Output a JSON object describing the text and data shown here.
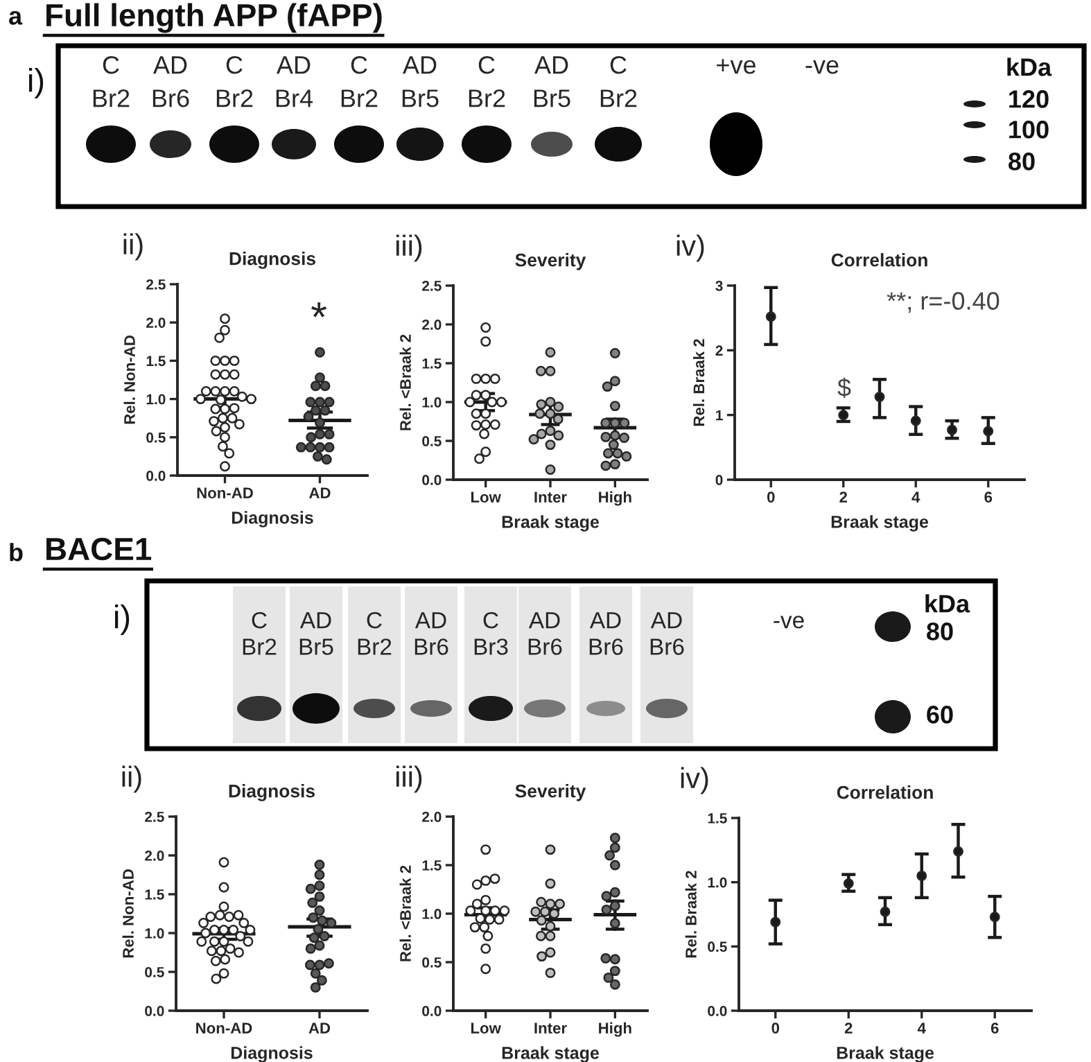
{
  "chart_data": [
    {
      "type": "other",
      "title": "Full length APP (fAPP)",
      "categories": [
        "C\nBr2",
        "AD\nBr6",
        "C\nBr2",
        "AD\nBr4",
        "C\nBr2",
        "AD\nBr5",
        "C\nBr2",
        "AD\nBr5",
        "C\nBr2",
        "+ve",
        "-ve"
      ],
      "annotations": [
        "a",
        "i)",
        "kDa",
        "120",
        "100",
        "80"
      ]
    },
    {
      "type": "scatter",
      "title": "Diagnosis",
      "xlabel": "Diagnosis",
      "ylabel": "Rel. Non-AD",
      "categories": [
        "Non-AD",
        "AD"
      ],
      "ylim": [
        0,
        2.5
      ],
      "yticks": [
        {
          "value": 0,
          "label": "0.0"
        },
        {
          "value": 0.5,
          "label": "0.5"
        },
        {
          "value": 1,
          "label": "1.0"
        },
        {
          "value": 1.5,
          "label": "1.5"
        },
        {
          "value": 2,
          "label": "2.0"
        },
        {
          "value": 2.5,
          "label": "2.5"
        }
      ],
      "series": [
        {
          "type": "scatter",
          "marker": "circle",
          "color": "#ffffff",
          "x": [
            "Non-AD",
            "Non-AD",
            "Non-AD",
            "Non-AD",
            "Non-AD",
            "Non-AD",
            "Non-AD",
            "Non-AD",
            "Non-AD",
            "Non-AD",
            "Non-AD",
            "Non-AD",
            "Non-AD",
            "Non-AD",
            "Non-AD",
            "Non-AD",
            "Non-AD",
            "Non-AD",
            "Non-AD",
            "Non-AD",
            "Non-AD",
            "Non-AD",
            "Non-AD",
            "Non-AD",
            "Non-AD",
            "Non-AD",
            "Non-AD",
            "Non-AD",
            "Non-AD",
            "Non-AD"
          ],
          "values": [
            2.05,
            1.9,
            1.8,
            1.5,
            1.5,
            1.5,
            1.32,
            1.32,
            1.32,
            1.1,
            1.1,
            1.1,
            1.1,
            1.03,
            1.0,
            1.0,
            0.99,
            0.87,
            0.87,
            0.88,
            0.75,
            0.75,
            0.71,
            0.67,
            0.63,
            0.58,
            0.5,
            0.38,
            0.29,
            0.12
          ]
        },
        {
          "type": "scatter",
          "marker": "circle",
          "color": "#4d4d4d",
          "x": [
            "AD",
            "AD",
            "AD",
            "AD",
            "AD",
            "AD",
            "AD",
            "AD",
            "AD",
            "AD",
            "AD",
            "AD",
            "AD",
            "AD",
            "AD",
            "AD",
            "AD",
            "AD",
            "AD",
            "AD"
          ],
          "values": [
            1.61,
            1.28,
            1.17,
            1.17,
            0.96,
            0.96,
            0.96,
            0.85,
            0.85,
            0.77,
            0.69,
            0.54,
            0.5,
            0.54,
            0.37,
            0.37,
            0.37,
            0.37,
            0.25,
            0.21
          ]
        },
        {
          "type": "box",
          "color": "#1a1a1a",
          "boxes": [
            {
              "low": 0.89,
              "q1": 1.0,
              "median": 1.0,
              "q3": 1.0,
              "high": 1.1
            },
            {
              "low": 0.62,
              "q1": 0.72,
              "median": 0.72,
              "q3": 0.72,
              "high": 0.83
            }
          ]
        }
      ],
      "annotations": [
        "ii)",
        "*"
      ]
    },
    {
      "type": "scatter",
      "title": "Severity",
      "xlabel": "Braak stage",
      "ylabel": "Rel. <Braak 2",
      "categories": [
        "Low",
        "Inter",
        "High"
      ],
      "ylim": [
        0,
        2.5
      ],
      "yticks": [
        {
          "value": 0,
          "label": "0.0"
        },
        {
          "value": 0.5,
          "label": "0.5"
        },
        {
          "value": 1,
          "label": "1.0"
        },
        {
          "value": 1.5,
          "label": "1.5"
        },
        {
          "value": 2,
          "label": "2.0"
        },
        {
          "value": 2.5,
          "label": "2.5"
        }
      ],
      "series": [
        {
          "type": "scatter",
          "marker": "circle",
          "color": "#ffffff",
          "x": [
            "Low",
            "Low",
            "Low",
            "Low",
            "Low",
            "Low",
            "Low",
            "Low",
            "Low",
            "Low",
            "Low",
            "Low",
            "Low",
            "Low",
            "Low",
            "Low",
            "Low",
            "Low"
          ],
          "values": [
            1.96,
            1.78,
            1.3,
            1.3,
            1.3,
            1.09,
            1.09,
            1.0,
            1.0,
            1.0,
            0.85,
            0.85,
            0.71,
            0.7,
            0.71,
            0.59,
            0.36,
            0.27
          ]
        },
        {
          "type": "scatter",
          "marker": "circle",
          "color": "#a6a6a6",
          "x": [
            "Inter",
            "Inter",
            "Inter",
            "Inter",
            "Inter",
            "Inter",
            "Inter",
            "Inter",
            "Inter",
            "Inter",
            "Inter",
            "Inter",
            "Inter",
            "Inter",
            "Inter"
          ],
          "values": [
            1.64,
            1.4,
            1.4,
            1.0,
            0.97,
            0.94,
            0.85,
            0.85,
            0.78,
            0.63,
            0.59,
            0.57,
            0.52,
            0.45,
            0.13
          ]
        },
        {
          "type": "scatter",
          "marker": "circle",
          "color": "#7f7f7f",
          "x": [
            "High",
            "High",
            "High",
            "High",
            "High",
            "High",
            "High",
            "High",
            "High",
            "High",
            "High",
            "High",
            "High",
            "High",
            "High",
            "High"
          ],
          "values": [
            1.63,
            1.27,
            1.2,
            0.95,
            0.73,
            0.73,
            0.73,
            0.57,
            0.55,
            0.54,
            0.45,
            0.34,
            0.34,
            0.3,
            0.2,
            0.18
          ]
        },
        {
          "type": "box",
          "color": "#1a1a1a",
          "boxes": [
            {
              "low": 0.89,
              "q1": 1.0,
              "median": 1.0,
              "q3": 1.0,
              "high": 1.11
            },
            {
              "low": 0.71,
              "q1": 0.84,
              "median": 0.84,
              "q3": 0.84,
              "high": 0.97
            },
            {
              "low": 0.55,
              "q1": 0.67,
              "median": 0.67,
              "q3": 0.67,
              "high": 0.78
            }
          ]
        }
      ],
      "annotations": [
        "iii)"
      ]
    },
    {
      "type": "scatter",
      "title": "Correlation",
      "xlabel": "Braak stage",
      "ylabel": "Rel. Braak 2",
      "xlim": [
        -1,
        7
      ],
      "xticks": [
        0,
        2,
        4,
        6
      ],
      "ylim": [
        0,
        3
      ],
      "yticks": [
        0,
        1,
        2,
        3
      ],
      "series": [
        {
          "type": "scatter",
          "marker": "circle",
          "color": "#1a1a1a",
          "x": [
            0,
            2,
            3,
            4,
            5,
            6
          ],
          "values": [
            2.52,
            1.0,
            1.28,
            0.91,
            0.77,
            0.75
          ],
          "errors": [
            [
              2.09,
              2.97
            ],
            [
              0.9,
              1.11
            ],
            [
              0.96,
              1.55
            ],
            [
              0.7,
              1.13
            ],
            [
              0.64,
              0.91
            ],
            [
              0.56,
              0.96
            ]
          ]
        }
      ],
      "annotations": [
        "iv)",
        "**; r=-0.40",
        "$"
      ]
    },
    {
      "type": "other",
      "title": "BACE1",
      "categories": [
        "C\nBr2",
        "AD\nBr5",
        "C\nBr2",
        "AD\nBr6",
        "C\nBr3",
        "AD\nBr6",
        "AD\nBr6",
        "AD\nBr6",
        "-ve"
      ],
      "annotations": [
        "b",
        "i)",
        "kDa",
        "80",
        "60"
      ]
    },
    {
      "type": "scatter",
      "title": "Diagnosis",
      "xlabel": "Diagnosis",
      "ylabel": "Rel. Non-AD",
      "categories": [
        "Non-AD",
        "AD"
      ],
      "ylim": [
        0,
        2.5
      ],
      "yticks": [
        {
          "value": 0,
          "label": "0.0"
        },
        {
          "value": 0.5,
          "label": "0.5"
        },
        {
          "value": 1,
          "label": "1.0"
        },
        {
          "value": 1.5,
          "label": "1.5"
        },
        {
          "value": 2,
          "label": "2.0"
        },
        {
          "value": 2.5,
          "label": "2.5"
        }
      ],
      "series": [
        {
          "type": "scatter",
          "marker": "circle",
          "color": "#ffffff",
          "x": [
            "Non-AD",
            "Non-AD",
            "Non-AD",
            "Non-AD",
            "Non-AD",
            "Non-AD",
            "Non-AD",
            "Non-AD",
            "Non-AD",
            "Non-AD",
            "Non-AD",
            "Non-AD",
            "Non-AD",
            "Non-AD",
            "Non-AD",
            "Non-AD",
            "Non-AD",
            "Non-AD",
            "Non-AD",
            "Non-AD",
            "Non-AD",
            "Non-AD",
            "Non-AD",
            "Non-AD",
            "Non-AD",
            "Non-AD",
            "Non-AD"
          ],
          "values": [
            1.91,
            1.59,
            1.34,
            1.23,
            1.21,
            1.21,
            1.23,
            1.13,
            1.13,
            1.04,
            1.04,
            1.04,
            1.04,
            1.0,
            0.96,
            0.89,
            0.89,
            0.89,
            0.89,
            0.8,
            0.77,
            0.77,
            0.75,
            0.66,
            0.64,
            0.48,
            0.41
          ]
        },
        {
          "type": "scatter",
          "marker": "circle",
          "color": "#595959",
          "x": [
            "AD",
            "AD",
            "AD",
            "AD",
            "AD",
            "AD",
            "AD",
            "AD",
            "AD",
            "AD",
            "AD",
            "AD",
            "AD",
            "AD",
            "AD",
            "AD",
            "AD",
            "AD",
            "AD",
            "AD",
            "AD"
          ],
          "values": [
            1.88,
            1.75,
            1.61,
            1.57,
            1.47,
            1.39,
            1.29,
            1.2,
            1.16,
            1.13,
            1.05,
            0.96,
            0.94,
            0.84,
            0.8,
            0.59,
            0.59,
            0.61,
            0.48,
            0.39,
            0.3
          ]
        },
        {
          "type": "box",
          "color": "#1a1a1a",
          "boxes": [
            {
              "low": 0.92,
              "q1": 0.99,
              "median": 0.99,
              "q3": 0.99,
              "high": 1.06
            },
            {
              "low": 0.96,
              "q1": 1.08,
              "median": 1.08,
              "q3": 1.08,
              "high": 1.18
            }
          ]
        }
      ],
      "annotations": [
        "ii)"
      ]
    },
    {
      "type": "scatter",
      "title": "Severity",
      "xlabel": "Braak stage",
      "ylabel": "Rel. <Braak 2",
      "categories": [
        "Low",
        "Inter",
        "High"
      ],
      "ylim": [
        0,
        2
      ],
      "yticks": [
        {
          "value": 0,
          "label": "0.0"
        },
        {
          "value": 0.5,
          "label": "0.5"
        },
        {
          "value": 1,
          "label": "1.0"
        },
        {
          "value": 1.5,
          "label": "1.5"
        },
        {
          "value": 2,
          "label": "2.0"
        }
      ],
      "series": [
        {
          "type": "scatter",
          "marker": "circle",
          "color": "#ffffff",
          "x": [
            "Low",
            "Low",
            "Low",
            "Low",
            "Low",
            "Low",
            "Low",
            "Low",
            "Low",
            "Low",
            "Low",
            "Low",
            "Low",
            "Low",
            "Low",
            "Low",
            "Low",
            "Low"
          ],
          "values": [
            1.66,
            1.34,
            1.3,
            1.36,
            1.14,
            1.1,
            1.03,
            1.03,
            1.03,
            1.03,
            0.95,
            0.94,
            0.94,
            0.86,
            0.86,
            0.77,
            0.64,
            0.43
          ]
        },
        {
          "type": "scatter",
          "marker": "circle",
          "color": "#bfbfbf",
          "x": [
            "Inter",
            "Inter",
            "Inter",
            "Inter",
            "Inter",
            "Inter",
            "Inter",
            "Inter",
            "Inter",
            "Inter",
            "Inter",
            "Inter",
            "Inter",
            "Inter",
            "Inter"
          ],
          "values": [
            1.66,
            1.31,
            1.1,
            1.12,
            1.1,
            1.02,
            1.02,
            1.0,
            0.93,
            0.87,
            0.77,
            0.77,
            0.6,
            0.56,
            0.39
          ]
        },
        {
          "type": "scatter",
          "marker": "circle",
          "color": "#666666",
          "x": [
            "High",
            "High",
            "High",
            "High",
            "High",
            "High",
            "High",
            "High",
            "High",
            "High",
            "High",
            "High",
            "High",
            "High"
          ],
          "values": [
            1.78,
            1.68,
            1.6,
            1.5,
            1.22,
            1.18,
            1.08,
            1.04,
            0.9,
            0.53,
            0.54,
            0.41,
            0.34,
            0.27
          ]
        },
        {
          "type": "box",
          "color": "#1a1a1a",
          "boxes": [
            {
              "low": 0.93,
              "q1": 0.99,
              "median": 0.99,
              "q3": 0.99,
              "high": 1.06
            },
            {
              "low": 0.84,
              "q1": 0.94,
              "median": 0.94,
              "q3": 0.94,
              "high": 1.04
            },
            {
              "low": 0.84,
              "q1": 0.99,
              "median": 0.99,
              "q3": 0.99,
              "high": 1.13
            }
          ]
        }
      ],
      "annotations": [
        "iii)"
      ]
    },
    {
      "type": "scatter",
      "title": "Correlation",
      "xlabel": "Braak stage",
      "ylabel": "Rel. Braak 2",
      "xlim": [
        -1,
        7
      ],
      "xticks": [
        0,
        2,
        4,
        6
      ],
      "ylim": [
        0,
        1.5
      ],
      "yticks": [
        {
          "value": 0,
          "label": "0.0"
        },
        {
          "value": 0.5,
          "label": "0.5"
        },
        {
          "value": 1,
          "label": "1.0"
        },
        {
          "value": 1.5,
          "label": "1.5"
        }
      ],
      "series": [
        {
          "type": "scatter",
          "marker": "circle",
          "color": "#1a1a1a",
          "x": [
            0,
            2,
            3,
            4,
            5,
            6
          ],
          "values": [
            0.69,
            0.99,
            0.77,
            1.05,
            1.24,
            0.73
          ],
          "errors": [
            [
              0.52,
              0.86
            ],
            [
              0.93,
              1.06
            ],
            [
              0.67,
              0.88
            ],
            [
              0.88,
              1.22
            ],
            [
              1.04,
              1.45
            ],
            [
              0.57,
              0.89
            ]
          ]
        }
      ],
      "annotations": [
        "iv)"
      ]
    }
  ]
}
